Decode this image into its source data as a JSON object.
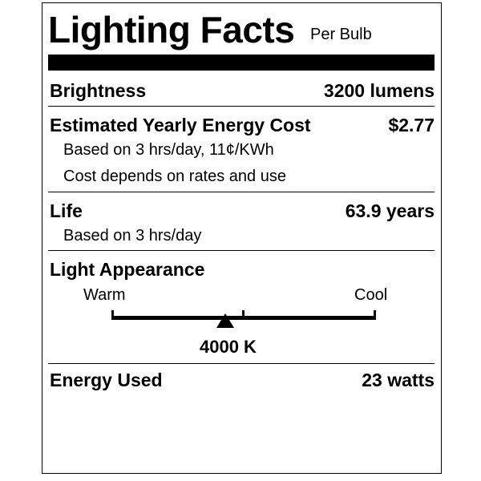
{
  "header": {
    "title": "Lighting Facts",
    "subtitle": "Per Bulb"
  },
  "brightness": {
    "label": "Brightness",
    "value": "3200 lumens"
  },
  "energy_cost": {
    "label": "Estimated Yearly Energy Cost",
    "value": "$2.77",
    "notes": [
      "Based on 3 hrs/day, 11¢/KWh",
      "Cost depends on rates and use"
    ]
  },
  "life": {
    "label": "Life",
    "value": "63.9 years",
    "note": "Based on 3 hrs/day"
  },
  "light_appearance": {
    "label": "Light Appearance",
    "warm_label": "Warm",
    "cool_label": "Cool",
    "value": "4000 K",
    "marker_fraction": 0.43
  },
  "energy_used": {
    "label": "Energy Used",
    "value": "23 watts"
  }
}
